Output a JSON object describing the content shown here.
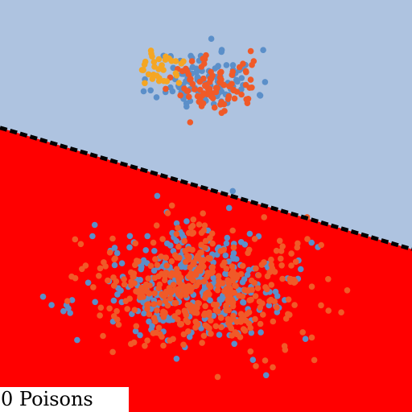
{
  "overlay": {
    "poisons_label": "0 Poisons"
  },
  "chart_data": {
    "type": "scatter",
    "xlim": [
      0,
      100
    ],
    "ylim": [
      0,
      100
    ],
    "grid": false,
    "legend": "none",
    "regions": {
      "upper": {
        "color": "#aec3e0"
      },
      "lower": {
        "color": "#ff0000"
      }
    },
    "decision_boundary": {
      "style": "dashed",
      "color": "#000000",
      "points": [
        [
          0,
          69.0
        ],
        [
          100,
          39.5
        ]
      ]
    },
    "series": [
      {
        "color": "#5b8fc9",
        "clusters": [
          {
            "center": [
              50.0,
              80.5
            ],
            "spread": [
              6.0,
              3.7
            ],
            "count": 110,
            "seed": 11
          },
          {
            "center": [
              47.5,
              30.5
            ],
            "spread": [
              12.0,
              7.0
            ],
            "count": 320,
            "seed": 21
          }
        ]
      },
      {
        "color": "#f05a28",
        "clusters": [
          {
            "center": [
              52.0,
              79.0
            ],
            "spread": [
              5.5,
              3.5
            ],
            "count": 90,
            "seed": 31
          },
          {
            "center": [
              49.0,
              30.0
            ],
            "spread": [
              13.5,
              7.5
            ],
            "count": 420,
            "seed": 41
          }
        ]
      },
      {
        "color": "#f5a623",
        "clusters": [
          {
            "center": [
              38.5,
              83.5
            ],
            "spread": [
              3.2,
              2.5
            ],
            "count": 35,
            "seed": 51
          }
        ]
      }
    ]
  }
}
